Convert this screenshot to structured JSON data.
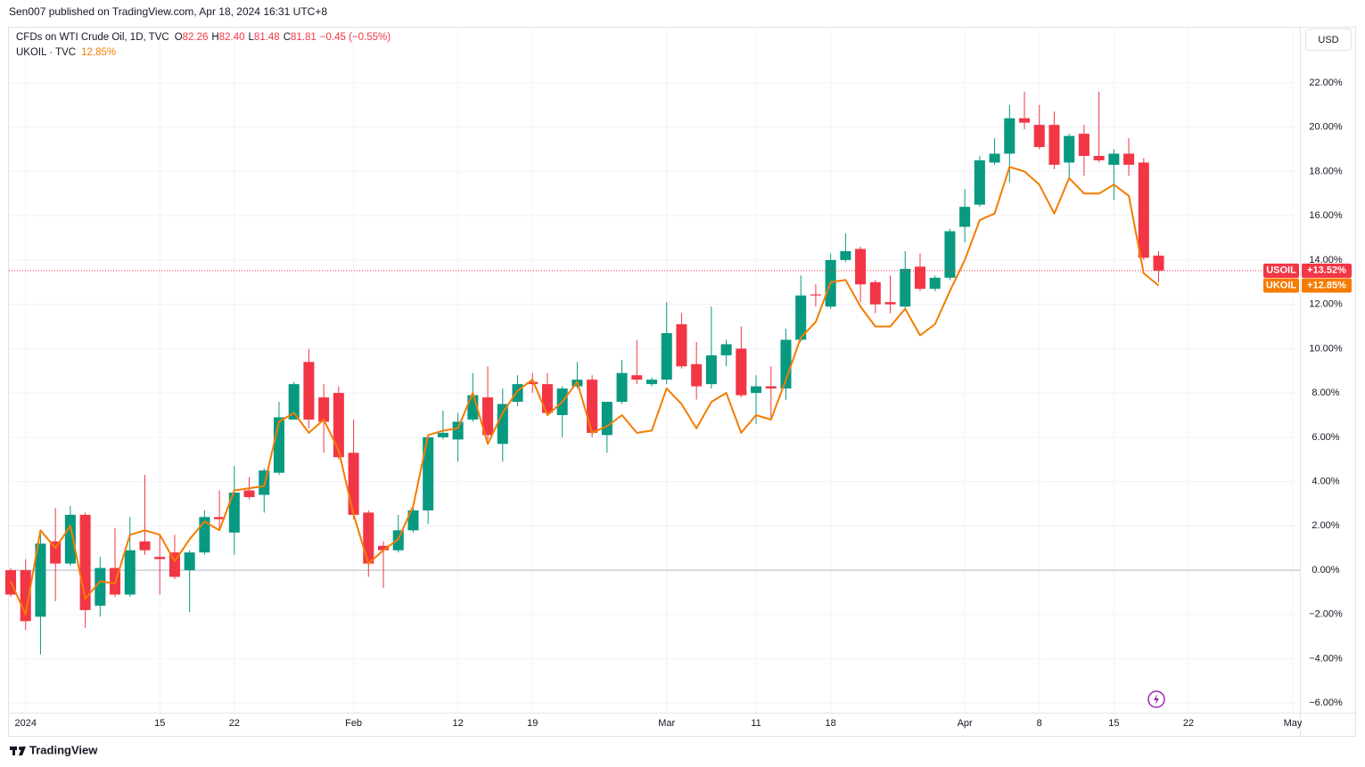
{
  "header": "Sen007 published on TradingView.com, Apr 18, 2024 16:31 UTC+8",
  "footer": "TradingView",
  "currency": "USD",
  "legend": {
    "title": "CFDs on WTI Crude Oil, 1D, TVC",
    "ohlc": [
      {
        "label": "O",
        "value": "82.26"
      },
      {
        "label": "H",
        "value": "82.40"
      },
      {
        "label": "L",
        "value": "81.48"
      },
      {
        "label": "C",
        "value": "81.81"
      }
    ],
    "change": "−0.45 (−0.55%)",
    "compare": {
      "name": "UKOIL · TVC",
      "value": "12.85%"
    }
  },
  "chart_data": {
    "type": "candlestick",
    "categories": [
      null,
      "2024",
      null,
      null,
      null,
      null,
      null,
      null,
      null,
      null,
      "15",
      null,
      null,
      null,
      null,
      "22",
      null,
      null,
      null,
      null,
      null,
      null,
      null,
      "Feb",
      null,
      null,
      null,
      null,
      null,
      null,
      "12",
      null,
      null,
      null,
      null,
      "19",
      null,
      null,
      null,
      null,
      null,
      null,
      null,
      null,
      "Mar",
      null,
      null,
      null,
      null,
      null,
      "11",
      null,
      null,
      null,
      null,
      "18",
      null,
      null,
      null,
      null,
      null,
      null,
      null,
      null,
      "Apr",
      null,
      null,
      null,
      null,
      "8",
      null,
      null,
      null,
      null,
      "15",
      null,
      null,
      null,
      null,
      "22",
      null,
      null,
      null,
      null,
      null,
      null,
      "May"
    ],
    "series": [
      {
        "name": "USOIL",
        "type": "candlestick",
        "up_color": "#089981",
        "down_color": "#f23645",
        "last_value_label": "+13.52%",
        "open": [
          0,
          0,
          -2.1,
          1.3,
          0.3,
          2.5,
          -1.6,
          0.1,
          -1.1,
          1.3,
          0.6,
          0.8,
          0,
          0.8,
          2.4,
          1.7,
          3.6,
          3.4,
          4.4,
          6.8,
          9.4,
          7.8,
          8.0,
          5.3,
          2.6,
          1.1,
          0.9,
          1.8,
          2.7,
          6.0,
          5.9,
          6.8,
          7.8,
          5.7,
          7.6,
          8.5,
          8.4,
          7.0,
          8.3,
          8.6,
          6.1,
          7.6,
          8.8,
          8.4,
          8.6,
          11.1,
          9.3,
          8.4,
          9.7,
          10.0,
          8.0,
          8.3,
          8.2,
          10.4,
          12.45,
          11.9,
          14.0,
          14.5,
          13.0,
          12.1,
          11.9,
          13.7,
          12.7,
          13.2,
          15.5,
          16.5,
          18.4,
          18.8,
          20.4,
          20.1,
          20.1,
          18.4,
          19.7,
          18.7,
          18.3,
          18.8,
          18.4,
          14.2,
          null,
          null,
          null,
          null,
          null,
          null,
          null,
          null,
          null
        ],
        "high": [
          0.1,
          0.5,
          1.7,
          2.8,
          2.9,
          2.6,
          0.6,
          1.9,
          2.4,
          4.3,
          1.6,
          1.6,
          0.9,
          2.7,
          3.6,
          4.7,
          4.2,
          4.6,
          7.6,
          8.5,
          10.0,
          8.4,
          8.3,
          6.8,
          2.7,
          1.3,
          2.5,
          2.8,
          6.1,
          7.2,
          7.1,
          8.9,
          9.2,
          8.2,
          8.8,
          8.9,
          8.9,
          8.3,
          9.4,
          8.8,
          7.6,
          9.5,
          10.4,
          8.7,
          12.1,
          11.6,
          10.3,
          11.9,
          10.4,
          11.0,
          8.8,
          9.2,
          10.9,
          13.3,
          12.9,
          14.3,
          15.2,
          14.6,
          13.1,
          13.3,
          14.4,
          14.3,
          13.3,
          15.4,
          17.2,
          18.7,
          19.5,
          21.0,
          21.6,
          21.0,
          20.7,
          19.7,
          20.1,
          21.6,
          19.0,
          19.5,
          18.6,
          14.4,
          null,
          null,
          null,
          null,
          null,
          null,
          null,
          null,
          null
        ],
        "low": [
          -1.2,
          -2.7,
          -3.8,
          -1.4,
          0.2,
          -2.6,
          -2.1,
          -1.2,
          -1.2,
          0.7,
          -1.1,
          -0.4,
          -1.9,
          0.7,
          1.8,
          0.7,
          3.2,
          2.6,
          4.3,
          6.8,
          6.4,
          5.3,
          5.0,
          2.3,
          -0.3,
          -0.8,
          0.8,
          1.7,
          2.1,
          5.9,
          4.9,
          6.7,
          5.9,
          4.9,
          7.4,
          8.0,
          7.0,
          6.0,
          8.2,
          6.0,
          5.3,
          7.5,
          8.4,
          8.3,
          8.4,
          9.1,
          7.7,
          8.2,
          9.2,
          7.8,
          6.6,
          6.8,
          7.7,
          10.3,
          11.9,
          11.8,
          13.9,
          12.1,
          11.6,
          11.6,
          11.8,
          12.6,
          12.6,
          13.1,
          14.8,
          16.4,
          18.3,
          17.5,
          19.9,
          19.0,
          18.1,
          17.6,
          17.8,
          18.4,
          16.7,
          17.8,
          14.0,
          13.0,
          null,
          null,
          null,
          null,
          null,
          null,
          null,
          null,
          null
        ],
        "close": [
          -1.1,
          -2.3,
          1.2,
          0.3,
          2.5,
          -1.8,
          0.1,
          -1.1,
          0.9,
          0.9,
          0.5,
          -0.3,
          0.8,
          2.4,
          2.3,
          3.5,
          3.3,
          4.5,
          6.9,
          8.4,
          6.8,
          6.7,
          5.1,
          2.5,
          0.3,
          0.9,
          1.8,
          2.7,
          6.0,
          6.2,
          6.7,
          7.9,
          6.1,
          7.5,
          8.4,
          8.4,
          7.1,
          8.2,
          8.6,
          6.2,
          7.6,
          8.9,
          8.6,
          8.6,
          10.7,
          9.2,
          8.3,
          9.7,
          10.2,
          7.9,
          8.3,
          8.2,
          10.4,
          12.4,
          12.4,
          14.0,
          14.4,
          12.9,
          12.0,
          12.0,
          13.6,
          12.7,
          13.2,
          15.3,
          16.4,
          18.5,
          18.8,
          20.4,
          20.2,
          19.1,
          18.3,
          19.6,
          18.7,
          18.5,
          18.8,
          18.3,
          14.1,
          13.52,
          null,
          null,
          null,
          null,
          null,
          null,
          null,
          null,
          null
        ]
      },
      {
        "name": "UKOIL",
        "type": "line",
        "color": "#f57c00",
        "last_value_label": "+12.85%",
        "values": [
          -0.5,
          -2.0,
          1.8,
          1.0,
          2.0,
          -1.3,
          -0.5,
          -0.6,
          1.6,
          1.8,
          1.6,
          0.4,
          1.4,
          2.2,
          1.8,
          3.6,
          3.7,
          3.8,
          6.7,
          7.1,
          6.2,
          6.8,
          5.4,
          2.5,
          0.3,
          0.9,
          1.4,
          2.9,
          6.1,
          6.3,
          6.4,
          8.0,
          5.7,
          7.1,
          8.1,
          8.6,
          7.0,
          7.6,
          8.5,
          6.2,
          6.5,
          7.0,
          6.2,
          6.3,
          8.2,
          7.5,
          6.4,
          7.6,
          8.0,
          6.2,
          7.0,
          6.8,
          8.6,
          10.5,
          11.2,
          13.0,
          13.1,
          11.9,
          11.0,
          11.0,
          11.8,
          10.6,
          11.1,
          12.6,
          14.0,
          15.8,
          16.1,
          18.2,
          18.0,
          17.4,
          16.1,
          17.7,
          17.0,
          17.0,
          17.4,
          16.9,
          13.4,
          12.85,
          null,
          null,
          null,
          null,
          null,
          null,
          null,
          null,
          null
        ]
      }
    ],
    "ylim": [
      -6.43,
      24.53
    ],
    "yticks": [
      {
        "value": 22,
        "label": "22.00%"
      },
      {
        "value": 20,
        "label": "20.00%"
      },
      {
        "value": 18,
        "label": "18.00%"
      },
      {
        "value": 16,
        "label": "16.00%"
      },
      {
        "value": 14,
        "label": "14.00%"
      },
      {
        "value": 12,
        "label": "12.00%"
      },
      {
        "value": 10,
        "label": "10.00%"
      },
      {
        "value": 8,
        "label": "8.00%"
      },
      {
        "value": 6,
        "label": "6.00%"
      },
      {
        "value": 4,
        "label": "4.00%"
      },
      {
        "value": 2,
        "label": "2.00%"
      },
      {
        "value": 0,
        "label": "0.00%"
      },
      {
        "value": -2,
        "label": "−2.00%"
      },
      {
        "value": -4,
        "label": "−4.00%"
      },
      {
        "value": -6,
        "label": "−6.00%"
      }
    ],
    "grid": true
  }
}
